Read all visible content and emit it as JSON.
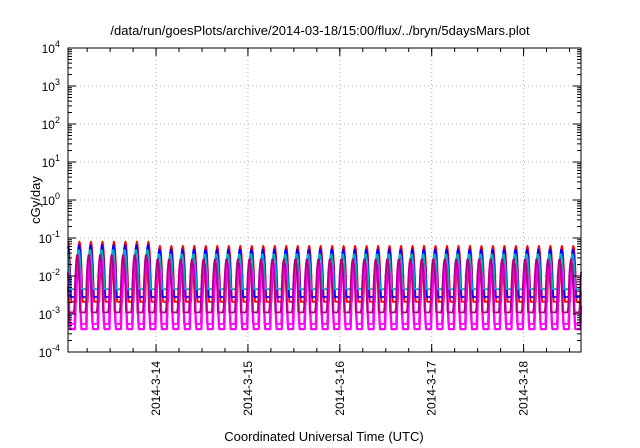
{
  "chart_data": {
    "type": "line",
    "title": "/data/run/goesPlots/archive/2014-03-18/15:00/flux/../bryn/5daysMars.plot",
    "xlabel": "Coordinated Universal Time (UTC)",
    "ylabel": "cGy/day",
    "yscale": "log",
    "ylim": [
      0.0001,
      10000
    ],
    "xlim": [
      "2014-03-13T01:00",
      "2014-03-18T15:00"
    ],
    "x_ticks": [
      "2014-3-14",
      "2014-3-15",
      "2014-3-16",
      "2014-3-17",
      "2014-3-18"
    ],
    "y_ticks": [
      {
        "base": "10",
        "exp": "-4"
      },
      {
        "base": "10",
        "exp": "-3"
      },
      {
        "base": "10",
        "exp": "-2"
      },
      {
        "base": "10",
        "exp": "-1"
      },
      {
        "base": "10",
        "exp": "0"
      },
      {
        "base": "10",
        "exp": "1"
      },
      {
        "base": "10",
        "exp": "2"
      },
      {
        "base": "10",
        "exp": "3"
      },
      {
        "base": "10",
        "exp": "4"
      }
    ],
    "grid": true,
    "legend": "none",
    "cycle_hours": 3,
    "series": [
      {
        "color": "#ff0000",
        "peak": 0.062,
        "trough": 0.0021
      },
      {
        "color": "#0000ff",
        "peak": 0.05,
        "trough": 0.0028
      },
      {
        "color": "#00b0c0",
        "peak": 0.038,
        "trough": 0.0045
      },
      {
        "color": "#ff00ff",
        "peak": 0.022,
        "trough": 0.0004
      },
      {
        "color": "#ff00ff",
        "peak": 0.016,
        "trough": 0.00055
      },
      {
        "color": "#b00080",
        "peak": 0.028,
        "trough": 0.0011
      }
    ],
    "early_boost": {
      "until": "2014-03-14T00:00",
      "factor": 1.3
    }
  }
}
